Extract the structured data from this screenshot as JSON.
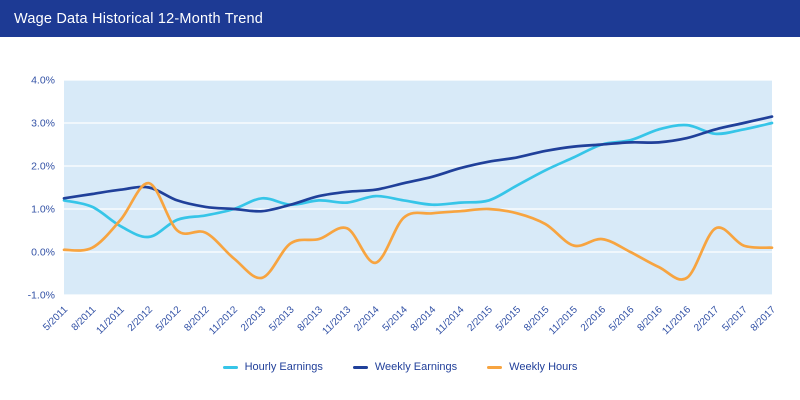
{
  "header": {
    "title": "Wage Data Historical 12-Month Trend"
  },
  "chart_data": {
    "type": "line",
    "title": "Wage Data Historical 12-Month Trend",
    "categories": [
      "5/2011",
      "8/2011",
      "11/2011",
      "2/2012",
      "5/2012",
      "8/2012",
      "11/2012",
      "2/2013",
      "5/2013",
      "8/2013",
      "11/2013",
      "2/2014",
      "5/2014",
      "8/2014",
      "11/2014",
      "2/2015",
      "5/2015",
      "8/2015",
      "11/2015",
      "2/2016",
      "5/2016",
      "8/2016",
      "11/2016",
      "2/2017",
      "5/2017",
      "8/2017"
    ],
    "series": [
      {
        "name": "Hourly Earnings",
        "color": "#36c5e8",
        "values": [
          1.2,
          1.05,
          0.6,
          0.35,
          0.75,
          0.85,
          1.0,
          1.25,
          1.1,
          1.2,
          1.15,
          1.3,
          1.2,
          1.1,
          1.15,
          1.2,
          1.55,
          1.9,
          2.2,
          2.5,
          2.6,
          2.85,
          2.95,
          2.75,
          2.85,
          3.0
        ]
      },
      {
        "name": "Weekly Earnings",
        "color": "#20409a",
        "values": [
          1.25,
          1.35,
          1.45,
          1.5,
          1.2,
          1.05,
          1.0,
          0.95,
          1.1,
          1.3,
          1.4,
          1.45,
          1.6,
          1.75,
          1.95,
          2.1,
          2.2,
          2.35,
          2.45,
          2.5,
          2.55,
          2.55,
          2.65,
          2.85,
          3.0,
          3.15
        ]
      },
      {
        "name": "Weekly Hours",
        "color": "#f7a440",
        "values": [
          0.05,
          0.1,
          0.75,
          1.6,
          0.5,
          0.45,
          -0.15,
          -0.6,
          0.2,
          0.3,
          0.55,
          -0.25,
          0.8,
          0.9,
          0.95,
          1.0,
          0.9,
          0.65,
          0.15,
          0.3,
          0.0,
          -0.35,
          -0.6,
          0.55,
          0.15,
          0.1
        ]
      }
    ],
    "ylim": [
      -1.0,
      4.0
    ],
    "y_ticks": [
      "4.0%",
      "3.0%",
      "2.0%",
      "1.0%",
      "0.0%",
      "-1.0%"
    ],
    "y_tick_values": [
      4,
      3,
      2,
      1,
      0,
      -1
    ],
    "grid": true,
    "legend_position": "bottom",
    "xlabel": "",
    "ylabel": "",
    "colors": {
      "header_bg": "#1d3a94",
      "plot_bg": "#d8eaf8",
      "grid_line": "#ffffff",
      "axis_label": "#3352a6",
      "legend_label": "#22409a"
    }
  }
}
